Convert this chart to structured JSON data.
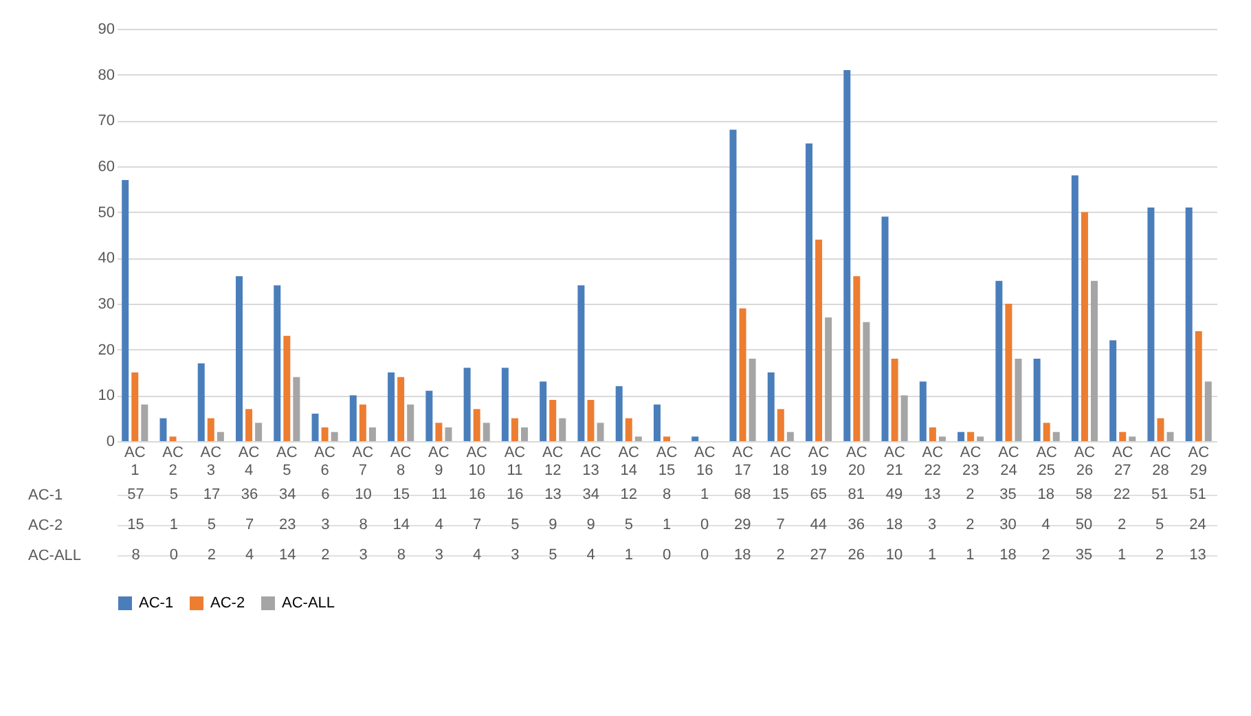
{
  "chart_data": {
    "type": "bar",
    "categories": [
      "AC 1",
      "AC 2",
      "AC 3",
      "AC 4",
      "AC 5",
      "AC 6",
      "AC 7",
      "AC 8",
      "AC 9",
      "AC 10",
      "AC 11",
      "AC 12",
      "AC 13",
      "AC 14",
      "AC 15",
      "AC 16",
      "AC 17",
      "AC 18",
      "AC 19",
      "AC 20",
      "AC 21",
      "AC 22",
      "AC 23",
      "AC 24",
      "AC 25",
      "AC 26",
      "AC 27",
      "AC 28",
      "AC 29"
    ],
    "series": [
      {
        "name": "AC-1",
        "color": "#4a7ebb",
        "values": [
          57,
          5,
          17,
          36,
          34,
          6,
          10,
          15,
          11,
          16,
          16,
          13,
          34,
          12,
          8,
          1,
          68,
          15,
          65,
          81,
          49,
          13,
          2,
          35,
          18,
          58,
          22,
          51,
          51
        ]
      },
      {
        "name": "AC-2",
        "color": "#ed7d31",
        "values": [
          15,
          1,
          5,
          7,
          23,
          3,
          8,
          14,
          4,
          7,
          5,
          9,
          9,
          5,
          1,
          0,
          29,
          7,
          44,
          36,
          18,
          3,
          2,
          30,
          4,
          50,
          2,
          5,
          24
        ]
      },
      {
        "name": "AC-ALL",
        "color": "#a5a5a5",
        "values": [
          8,
          0,
          2,
          4,
          14,
          2,
          3,
          8,
          3,
          4,
          3,
          5,
          4,
          1,
          0,
          0,
          18,
          2,
          27,
          26,
          10,
          1,
          1,
          18,
          2,
          35,
          1,
          2,
          13
        ]
      }
    ],
    "ylim": [
      0,
      90
    ],
    "yticks": [
      0,
      10,
      20,
      30,
      40,
      50,
      60,
      70,
      80,
      90
    ],
    "grid": "y",
    "legend": "bottom",
    "data_labels": true
  }
}
